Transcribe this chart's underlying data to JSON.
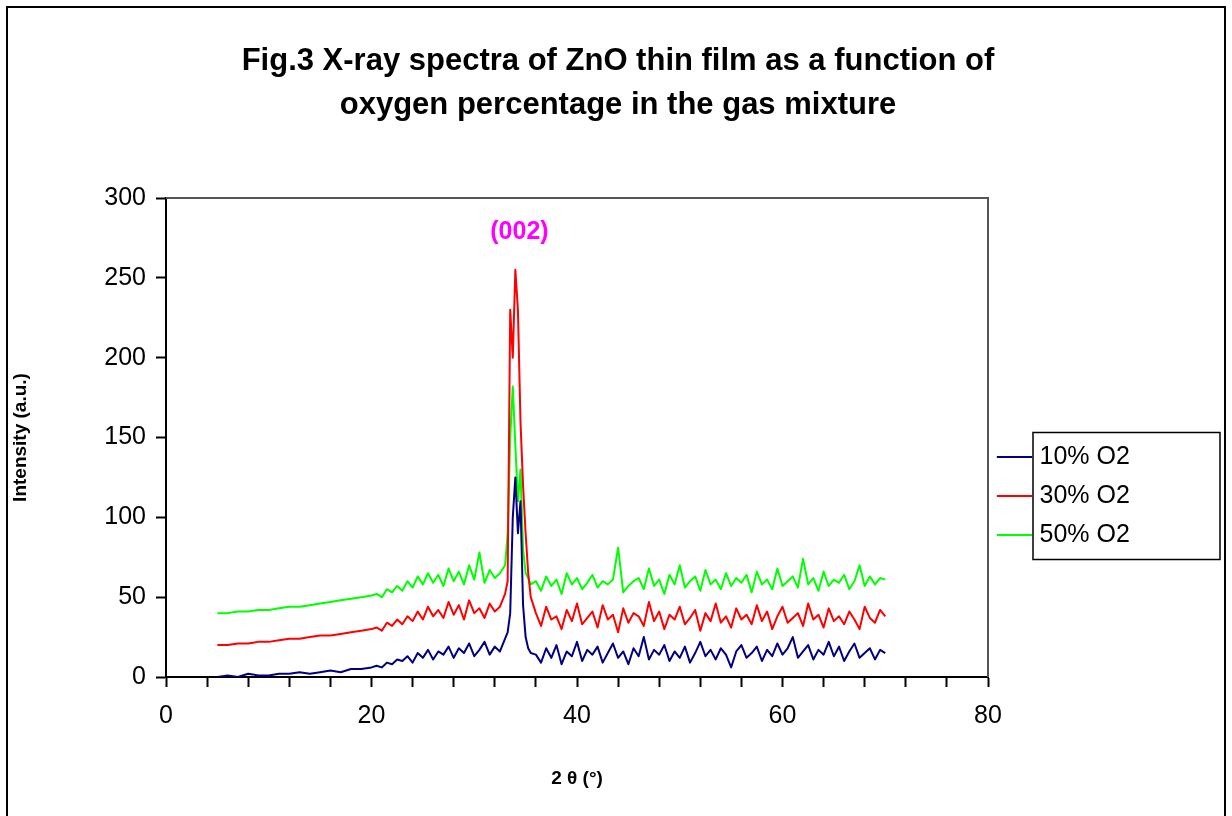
{
  "chart_data": {
    "type": "line",
    "title": "Fig.3 X-ray spectra of ZnO thin film as a function of oxygen percentage in the gas mixture",
    "xlabel": "2 θ (°)",
    "ylabel": "Intensity (a.u.)",
    "x": [
      5,
      6,
      7,
      8,
      9,
      10,
      11,
      12,
      13,
      14,
      15,
      16,
      17,
      18,
      19,
      20,
      20.5,
      21,
      21.5,
      22,
      22.5,
      23,
      23.5,
      24,
      24.5,
      25,
      25.5,
      26,
      26.5,
      27,
      27.5,
      28,
      28.5,
      29,
      29.5,
      30,
      30.5,
      31,
      31.5,
      32,
      32.5,
      33,
      33.25,
      33.5,
      33.75,
      34,
      34.25,
      34.5,
      34.75,
      35,
      35.25,
      35.5,
      36,
      36.5,
      37,
      37.5,
      38,
      38.5,
      39,
      39.5,
      40,
      40.5,
      41,
      41.5,
      42,
      42.5,
      43,
      43.5,
      44,
      44.5,
      45,
      45.5,
      46,
      46.5,
      47,
      47.5,
      48,
      48.5,
      49,
      49.5,
      50,
      50.5,
      51,
      51.5,
      52,
      52.5,
      53,
      53.5,
      54,
      54.5,
      55,
      55.5,
      56,
      56.5,
      57,
      57.5,
      58,
      58.5,
      59,
      59.5,
      60,
      60.5,
      61,
      61.5,
      62,
      62.5,
      63,
      63.5,
      64,
      64.5,
      65,
      65.5,
      66,
      66.5,
      67,
      67.5,
      68,
      68.5,
      69,
      69.5,
      70
    ],
    "series": [
      {
        "name": "10% O2",
        "color": "#000080",
        "values": [
          0,
          1,
          0,
          2,
          1,
          1,
          2,
          2,
          3,
          2,
          3,
          4,
          3,
          5,
          5,
          6,
          7,
          6,
          9,
          8,
          11,
          10,
          13,
          9,
          15,
          12,
          17,
          11,
          16,
          14,
          19,
          12,
          18,
          15,
          21,
          13,
          17,
          22,
          14,
          19,
          16,
          24,
          28,
          40,
          100,
          125,
          90,
          110,
          45,
          25,
          18,
          15,
          14,
          9,
          18,
          12,
          20,
          8,
          16,
          13,
          22,
          10,
          17,
          14,
          19,
          9,
          15,
          21,
          12,
          16,
          8,
          18,
          13,
          25,
          11,
          17,
          14,
          20,
          10,
          16,
          12,
          19,
          9,
          15,
          22,
          13,
          17,
          11,
          18,
          14,
          6,
          16,
          20,
          12,
          15,
          19,
          10,
          17,
          13,
          21,
          14,
          18,
          25,
          12,
          16,
          20,
          11,
          17,
          14,
          22,
          13,
          19,
          10,
          16,
          21,
          12,
          15,
          18,
          11,
          17,
          15
        ]
      },
      {
        "name": "30% O2",
        "color": "#ff0000",
        "values": [
          20,
          20,
          21,
          21,
          22,
          22,
          23,
          24,
          24,
          25,
          26,
          26,
          27,
          28,
          29,
          30,
          31,
          29,
          34,
          32,
          36,
          33,
          38,
          35,
          41,
          36,
          44,
          38,
          42,
          37,
          47,
          39,
          45,
          36,
          48,
          40,
          43,
          37,
          46,
          41,
          44,
          52,
          60,
          230,
          200,
          255,
          230,
          160,
          120,
          90,
          65,
          50,
          40,
          32,
          44,
          36,
          38,
          30,
          42,
          35,
          46,
          33,
          37,
          41,
          31,
          45,
          36,
          39,
          28,
          43,
          34,
          40,
          38,
          32,
          47,
          35,
          41,
          30,
          39,
          36,
          44,
          33,
          37,
          42,
          29,
          40,
          35,
          46,
          34,
          38,
          31,
          43,
          36,
          39,
          33,
          45,
          35,
          41,
          30,
          38,
          44,
          34,
          37,
          40,
          32,
          46,
          36,
          39,
          31,
          43,
          35,
          38,
          33,
          41,
          36,
          30,
          44,
          37,
          34,
          42,
          38
        ]
      },
      {
        "name": "50% O2",
        "color": "#00ff00",
        "values": [
          40,
          40,
          41,
          41,
          42,
          42,
          43,
          44,
          44,
          45,
          46,
          47,
          48,
          49,
          50,
          51,
          52,
          50,
          55,
          53,
          57,
          54,
          60,
          56,
          63,
          58,
          65,
          59,
          64,
          57,
          68,
          60,
          66,
          58,
          70,
          61,
          78,
          59,
          67,
          62,
          65,
          70,
          90,
          150,
          182,
          145,
          110,
          130,
          80,
          65,
          62,
          58,
          60,
          54,
          63,
          57,
          61,
          52,
          65,
          58,
          62,
          55,
          59,
          64,
          56,
          60,
          58,
          61,
          81,
          53,
          57,
          60,
          62,
          55,
          68,
          57,
          61,
          52,
          64,
          58,
          70,
          56,
          60,
          63,
          54,
          67,
          58,
          61,
          55,
          65,
          57,
          62,
          59,
          64,
          53,
          66,
          58,
          61,
          55,
          68,
          57,
          60,
          63,
          56,
          74,
          58,
          62,
          54,
          66,
          57,
          61,
          59,
          64,
          55,
          60,
          70,
          57,
          63,
          58,
          62,
          61
        ]
      }
    ],
    "xlim": [
      0,
      80
    ],
    "xticks": [
      0,
      {
        "value": 4,
        "label": null
      },
      {
        "value": 8,
        "label": null
      },
      {
        "value": 12,
        "label": null
      },
      {
        "value": 16,
        "label": null
      },
      20,
      {
        "value": 24,
        "label": null
      },
      {
        "value": 28,
        "label": null
      },
      {
        "value": 32,
        "label": null
      },
      {
        "value": 36,
        "label": null
      },
      40,
      {
        "value": 44,
        "label": null
      },
      {
        "value": 48,
        "label": null
      },
      {
        "value": 52,
        "label": null
      },
      {
        "value": 56,
        "label": null
      },
      60,
      {
        "value": 64,
        "label": null
      },
      {
        "value": 68,
        "label": null
      },
      {
        "value": 72,
        "label": null
      },
      {
        "value": 76,
        "label": null
      },
      80
    ],
    "ylim": [
      0,
      300
    ],
    "yticks": [
      0,
      50,
      100,
      150,
      200,
      250,
      300
    ],
    "annotations": [
      "(002)"
    ],
    "grid": false,
    "legend": "right",
    "marker": "none",
    "line_style": "solid"
  }
}
